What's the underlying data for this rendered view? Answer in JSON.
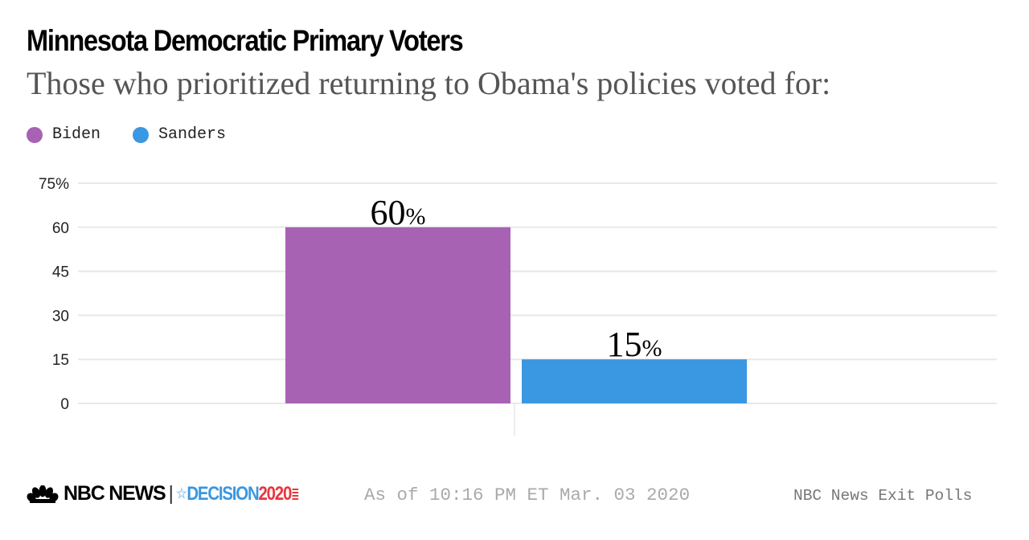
{
  "header": {
    "title": "Minnesota Democratic Primary Voters",
    "subtitle": "Those who prioritized returning to Obama's policies voted for:"
  },
  "legend": [
    {
      "label": "Biden",
      "color": "#a862b4"
    },
    {
      "label": "Sanders",
      "color": "#3a97e2"
    }
  ],
  "footer": {
    "brand": "NBC NEWS",
    "separator": "|",
    "decision_text": "DECISION",
    "decision_year": "2020",
    "as_of": "As of 10:16 PM ET Mar. 03 2020",
    "source": "NBC News Exit Polls"
  },
  "chart_data": {
    "type": "bar",
    "title": "Minnesota Democratic Primary Voters",
    "subtitle": "Those who prioritized returning to Obama's policies voted for:",
    "categories": [
      "Biden",
      "Sanders"
    ],
    "values": [
      60,
      15
    ],
    "colors": [
      "#a862b4",
      "#3a97e2"
    ],
    "data_labels": [
      "60%",
      "15%"
    ],
    "xlabel": "",
    "ylabel": "",
    "ylim": [
      0,
      75
    ],
    "yticks": [
      0,
      15,
      30,
      45,
      60,
      75
    ],
    "ytick_labels": [
      "0",
      "15",
      "30",
      "45",
      "60",
      "75%"
    ],
    "grid": true,
    "legend_position": "top-left"
  }
}
